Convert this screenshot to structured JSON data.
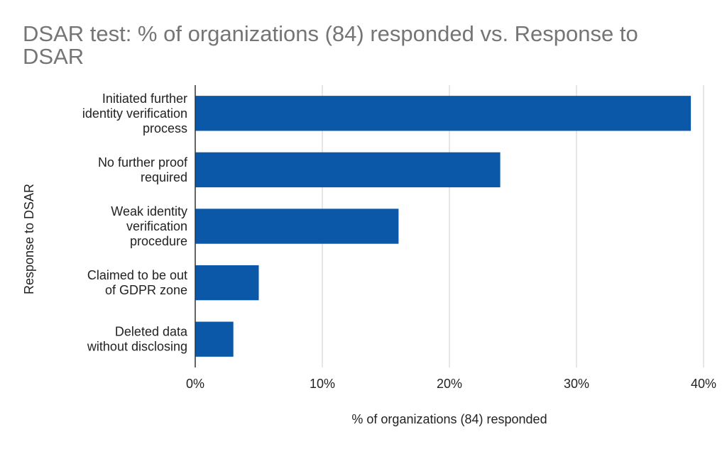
{
  "chart_data": {
    "type": "bar",
    "orientation": "horizontal",
    "title_lines": [
      "DSAR test: % of organizations (84) responded vs. Response to",
      "DSAR"
    ],
    "xlabel": "% of organizations (84) responded",
    "ylabel": "Response to DSAR",
    "categories": [
      [
        "Initiated further",
        "identity verification",
        "process"
      ],
      [
        "No further proof",
        "required"
      ],
      [
        "Weak identity",
        "verification",
        "procedure"
      ],
      [
        "Claimed to be out",
        "of GDPR zone"
      ],
      [
        "Deleted data",
        "without disclosing"
      ]
    ],
    "values": [
      39,
      24,
      16,
      5,
      3
    ],
    "xlim": [
      0,
      40
    ],
    "xticks": [
      0,
      10,
      20,
      30,
      40
    ],
    "xtick_labels": [
      "0%",
      "10%",
      "20%",
      "30%",
      "40%"
    ],
    "grid": true,
    "bar_color": "#0b57a8"
  }
}
